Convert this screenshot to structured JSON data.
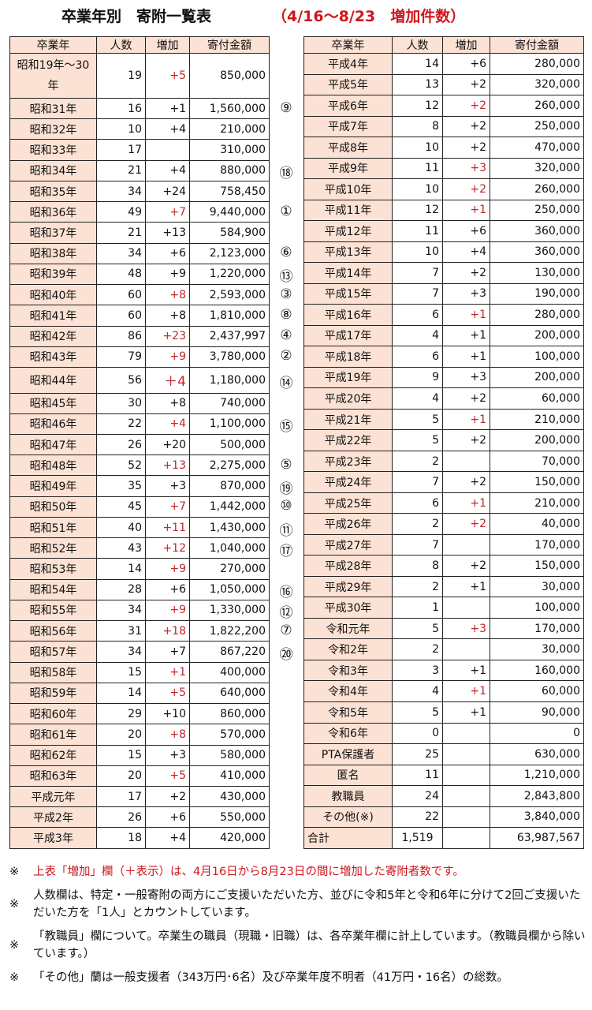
{
  "title": {
    "main": "卒業年別　寄附一覧表",
    "sub": "（4/16～8/23　増加件数）"
  },
  "headers": [
    "卒業年",
    "人数",
    "増加",
    "寄付金額"
  ],
  "colors": {
    "header_bg": "#fbe2d4",
    "red": "#c0262c",
    "note_red": "#d0161e"
  },
  "left_rows": [
    {
      "year": "昭和19年～30年",
      "count": "19",
      "inc": "+5",
      "red": true,
      "amount": "850,000",
      "rank": ""
    },
    {
      "year": "昭和31年",
      "count": "16",
      "inc": "+1",
      "red": false,
      "amount": "1,560,000",
      "rank": "⑨"
    },
    {
      "year": "昭和32年",
      "count": "10",
      "inc": "+4",
      "red": false,
      "amount": "210,000",
      "rank": ""
    },
    {
      "year": "昭和33年",
      "count": "17",
      "inc": "",
      "red": false,
      "amount": "310,000",
      "rank": ""
    },
    {
      "year": "昭和34年",
      "count": "21",
      "inc": "+4",
      "red": false,
      "amount": "880,000",
      "rank": "⑱"
    },
    {
      "year": "昭和35年",
      "count": "34",
      "inc": "+24",
      "red": false,
      "amount": "758,450",
      "rank": ""
    },
    {
      "year": "昭和36年",
      "count": "49",
      "inc": "+7",
      "red": true,
      "amount": "9,440,000",
      "rank": "①"
    },
    {
      "year": "昭和37年",
      "count": "21",
      "inc": "+13",
      "red": false,
      "amount": "584,900",
      "rank": ""
    },
    {
      "year": "昭和38年",
      "count": "34",
      "inc": "+6",
      "red": false,
      "amount": "2,123,000",
      "rank": "⑥"
    },
    {
      "year": "昭和39年",
      "count": "48",
      "inc": "+9",
      "red": false,
      "amount": "1,220,000",
      "rank": "⑬"
    },
    {
      "year": "昭和40年",
      "count": "60",
      "inc": "+8",
      "red": true,
      "amount": "2,593,000",
      "rank": "③"
    },
    {
      "year": "昭和41年",
      "count": "60",
      "inc": "+8",
      "red": false,
      "amount": "1,810,000",
      "rank": "⑧"
    },
    {
      "year": "昭和42年",
      "count": "86",
      "inc": "+23",
      "red": true,
      "amount": "2,437,997",
      "rank": "④"
    },
    {
      "year": "昭和43年",
      "count": "79",
      "inc": "+9",
      "red": true,
      "amount": "3,780,000",
      "rank": "②"
    },
    {
      "year": "昭和44年",
      "count": "56",
      "inc": "＋4",
      "red": true,
      "big": true,
      "amount": "1,180,000",
      "rank": "⑭"
    },
    {
      "year": "昭和45年",
      "count": "30",
      "inc": "+8",
      "red": false,
      "amount": "740,000",
      "rank": ""
    },
    {
      "year": "昭和46年",
      "count": "22",
      "inc": "+4",
      "red": true,
      "amount": "1,100,000",
      "rank": "⑮"
    },
    {
      "year": "昭和47年",
      "count": "26",
      "inc": "+20",
      "red": false,
      "amount": "500,000",
      "rank": ""
    },
    {
      "year": "昭和48年",
      "count": "52",
      "inc": "+13",
      "red": true,
      "amount": "2,275,000",
      "rank": "⑤"
    },
    {
      "year": "昭和49年",
      "count": "35",
      "inc": "+3",
      "red": false,
      "amount": "870,000",
      "rank": "⑲"
    },
    {
      "year": "昭和50年",
      "count": "45",
      "inc": "+7",
      "red": true,
      "amount": "1,442,000",
      "rank": "⑩"
    },
    {
      "year": "昭和51年",
      "count": "40",
      "inc": "+11",
      "red": true,
      "amount": "1,430,000",
      "rank": "⑪"
    },
    {
      "year": "昭和52年",
      "count": "43",
      "inc": "+12",
      "red": true,
      "amount": "1,040,000",
      "rank": "⑰"
    },
    {
      "year": "昭和53年",
      "count": "14",
      "inc": "+9",
      "red": true,
      "amount": "270,000",
      "rank": ""
    },
    {
      "year": "昭和54年",
      "count": "28",
      "inc": "+6",
      "red": false,
      "amount": "1,050,000",
      "rank": "⑯"
    },
    {
      "year": "昭和55年",
      "count": "34",
      "inc": "+9",
      "red": true,
      "amount": "1,330,000",
      "rank": "⑫"
    },
    {
      "year": "昭和56年",
      "count": "31",
      "inc": "+18",
      "red": true,
      "amount": "1,822,200",
      "rank": "⑦"
    },
    {
      "year": "昭和57年",
      "count": "34",
      "inc": "+7",
      "red": false,
      "amount": "867,220",
      "rank": "⑳"
    },
    {
      "year": "昭和58年",
      "count": "15",
      "inc": "+1",
      "red": true,
      "amount": "400,000",
      "rank": ""
    },
    {
      "year": "昭和59年",
      "count": "14",
      "inc": "+5",
      "red": true,
      "amount": "640,000",
      "rank": ""
    },
    {
      "year": "昭和60年",
      "count": "29",
      "inc": "+10",
      "red": false,
      "amount": "860,000",
      "rank": ""
    },
    {
      "year": "昭和61年",
      "count": "20",
      "inc": "+8",
      "red": true,
      "amount": "570,000",
      "rank": ""
    },
    {
      "year": "昭和62年",
      "count": "15",
      "inc": "+3",
      "red": false,
      "amount": "580,000",
      "rank": ""
    },
    {
      "year": "昭和63年",
      "count": "20",
      "inc": "+5",
      "red": true,
      "amount": "410,000",
      "rank": ""
    },
    {
      "year": "平成元年",
      "count": "17",
      "inc": "+2",
      "red": false,
      "amount": "430,000",
      "rank": ""
    },
    {
      "year": "平成2年",
      "count": "26",
      "inc": "+6",
      "red": false,
      "amount": "550,000",
      "rank": ""
    },
    {
      "year": "平成3年",
      "count": "18",
      "inc": "+4",
      "red": false,
      "amount": "420,000",
      "rank": ""
    }
  ],
  "right_rows": [
    {
      "year": "平成4年",
      "count": "14",
      "inc": "+6",
      "red": false,
      "amount": "280,000"
    },
    {
      "year": "平成5年",
      "count": "13",
      "inc": "+2",
      "red": false,
      "amount": "320,000"
    },
    {
      "year": "平成6年",
      "count": "12",
      "inc": "+2",
      "red": true,
      "amount": "260,000"
    },
    {
      "year": "平成7年",
      "count": "8",
      "inc": "+2",
      "red": false,
      "amount": "250,000"
    },
    {
      "year": "平成8年",
      "count": "10",
      "inc": "+2",
      "red": false,
      "amount": "470,000"
    },
    {
      "year": "平成9年",
      "count": "11",
      "inc": "+3",
      "red": true,
      "amount": "320,000"
    },
    {
      "year": "平成10年",
      "count": "10",
      "inc": "+2",
      "red": true,
      "amount": "260,000"
    },
    {
      "year": "平成11年",
      "count": "12",
      "inc": "+1",
      "red": true,
      "amount": "250,000"
    },
    {
      "year": "平成12年",
      "count": "11",
      "inc": "+6",
      "red": false,
      "amount": "360,000"
    },
    {
      "year": "平成13年",
      "count": "10",
      "inc": "+4",
      "red": false,
      "amount": "360,000"
    },
    {
      "year": "平成14年",
      "count": "7",
      "inc": "+2",
      "red": false,
      "amount": "130,000"
    },
    {
      "year": "平成15年",
      "count": "7",
      "inc": "+3",
      "red": false,
      "amount": "190,000"
    },
    {
      "year": "平成16年",
      "count": "6",
      "inc": "+1",
      "red": true,
      "amount": "280,000"
    },
    {
      "year": "平成17年",
      "count": "4",
      "inc": "+1",
      "red": false,
      "amount": "200,000"
    },
    {
      "year": "平成18年",
      "count": "6",
      "inc": "+1",
      "red": false,
      "amount": "100,000"
    },
    {
      "year": "平成19年",
      "count": "9",
      "inc": "+3",
      "red": false,
      "amount": "200,000"
    },
    {
      "year": "平成20年",
      "count": "4",
      "inc": "+2",
      "red": false,
      "amount": "60,000"
    },
    {
      "year": "平成21年",
      "count": "5",
      "inc": "+1",
      "red": true,
      "amount": "210,000"
    },
    {
      "year": "平成22年",
      "count": "5",
      "inc": "+2",
      "red": false,
      "amount": "200,000"
    },
    {
      "year": "平成23年",
      "count": "2",
      "inc": "",
      "red": false,
      "amount": "70,000"
    },
    {
      "year": "平成24年",
      "count": "7",
      "inc": "+2",
      "red": false,
      "amount": "150,000"
    },
    {
      "year": "平成25年",
      "count": "6",
      "inc": "+1",
      "red": true,
      "amount": "210,000"
    },
    {
      "year": "平成26年",
      "count": "2",
      "inc": "+2",
      "red": true,
      "amount": "40,000"
    },
    {
      "year": "平成27年",
      "count": "7",
      "inc": "",
      "red": false,
      "amount": "170,000"
    },
    {
      "year": "平成28年",
      "count": "8",
      "inc": "+2",
      "red": false,
      "amount": "150,000"
    },
    {
      "year": "平成29年",
      "count": "2",
      "inc": "+1",
      "red": false,
      "amount": "30,000"
    },
    {
      "year": "平成30年",
      "count": "1",
      "inc": "",
      "red": false,
      "amount": "100,000"
    },
    {
      "year": "令和元年",
      "count": "5",
      "inc": "+3",
      "red": true,
      "amount": "170,000"
    },
    {
      "year": "令和2年",
      "count": "2",
      "inc": "",
      "red": false,
      "amount": "30,000"
    },
    {
      "year": "令和3年",
      "count": "3",
      "inc": "+1",
      "red": false,
      "amount": "160,000"
    },
    {
      "year": "令和4年",
      "count": "4",
      "inc": "+1",
      "red": true,
      "amount": "60,000"
    },
    {
      "year": "令和5年",
      "count": "5",
      "inc": "+1",
      "red": false,
      "amount": "90,000"
    },
    {
      "year": "令和6年",
      "count": "0",
      "inc": "",
      "red": false,
      "amount": "0"
    },
    {
      "year": "PTA保護者",
      "count": "25",
      "inc": "",
      "red": false,
      "amount": "630,000"
    },
    {
      "year": "匿名",
      "count": "11",
      "inc": "",
      "red": false,
      "amount": "1,210,000"
    },
    {
      "year": "教職員",
      "count": "24",
      "inc": "",
      "red": false,
      "amount": "2,843,800"
    },
    {
      "year": "その他(※)",
      "count": "22",
      "inc": "",
      "red": false,
      "amount": "3,840,000"
    }
  ],
  "total": {
    "label": "合計",
    "count": "1,519",
    "inc": "",
    "amount": "63,987,567"
  },
  "notes": [
    {
      "mark": "※",
      "text": "上表「増加」欄（＋表示）は、4月16日から8月23日の間に増加した寄附者数です。",
      "red": true
    },
    {
      "mark": "※",
      "text": "人数欄は、特定・一般寄附の両方にご支援いただいた方、並びに令和5年と令和6年に分けて2回ご支援いただいた方を「1人」とカウントしています。",
      "red": false
    },
    {
      "mark": "※",
      "text": "「教職員」欄について。卒業生の職員（現職・旧職）は、各卒業年欄に計上しています。（教職員欄から除いています。）",
      "red": false
    },
    {
      "mark": "※",
      "text": "「その他」蘭は一般支援者（343万円･6名）及び卒業年度不明者（41万円・16名）の総数。",
      "red": false
    }
  ]
}
